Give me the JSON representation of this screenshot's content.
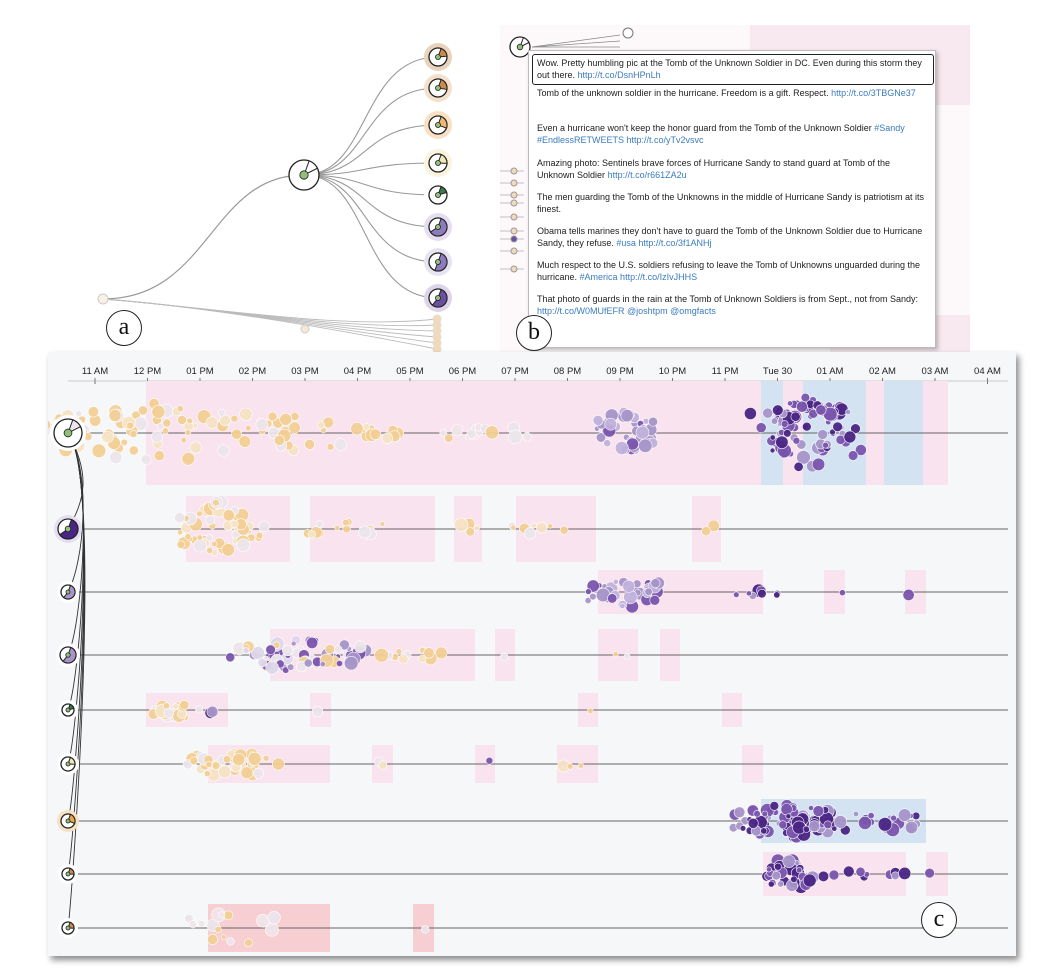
{
  "panel_labels": {
    "a": "a",
    "b": "b",
    "c": "c"
  },
  "tweets": [
    {
      "text": "Wow. Pretty humbling pic at the Tomb of the Unknown Soldier in DC. Even during this storm they out there.",
      "link": "http://t.co/DsnHPnLh"
    },
    {
      "text": "Tomb of the unknown soldier in the hurricane. Freedom is a gift. Respect.",
      "link": "http://t.co/3TBGNe37"
    },
    {
      "text": "Even a hurricane won't keep the honor guard from the Tomb of the Unknown Soldier",
      "link": "#Sandy #EndlessRETWEETS http://t.co/yTv2vsvc"
    },
    {
      "text": "Amazing photo: Sentinels brave forces of Hurricane Sandy to stand guard at Tomb of the Unknown Soldier",
      "link": "http://t.co/r661ZA2u"
    },
    {
      "text": "The men guarding the Tomb of the Unknowns in the middle of Hurricane Sandy is patriotism at its finest.",
      "link": ""
    },
    {
      "text": "Obama tells marines they don't have to guard the Tomb of the Unknown Soldier due to Hurricane Sandy, they refuse.",
      "link": "#usa http://t.co/3f1ANHj"
    },
    {
      "text": "Much respect to the U.S. soldiers refusing to leave the Tomb of Unknowns unguarded during the hurricane.",
      "link": "#America http://t.co/IzIvJHHS"
    },
    {
      "text": "That photo of guards in the rain at the Tomb of Unknown Soldiers is from Sept., not from Sandy:",
      "link": "http://t.co/W0MUfEFR @joshtpm @omgfacts"
    }
  ],
  "time_axis": [
    "11 AM",
    "12 PM",
    "01 PM",
    "02 PM",
    "03 PM",
    "04 PM",
    "05 PM",
    "06 PM",
    "07 PM",
    "08 PM",
    "09 PM",
    "10 PM",
    "11 PM",
    "Tue 30",
    "01 AM",
    "02 AM",
    "03 AM",
    "04 AM"
  ],
  "colors": {
    "orange": "#f3cf95",
    "light": "#ece6ec",
    "lavender": "#a795c9",
    "purple": "#7a55ae",
    "dark": "#4a2585",
    "pink_band": "#f9e3ee",
    "blue_band": "#d3e3f2",
    "red_band": "#f7cfd3"
  },
  "glyph_icons": [
    "pie-glyph-icon"
  ]
}
